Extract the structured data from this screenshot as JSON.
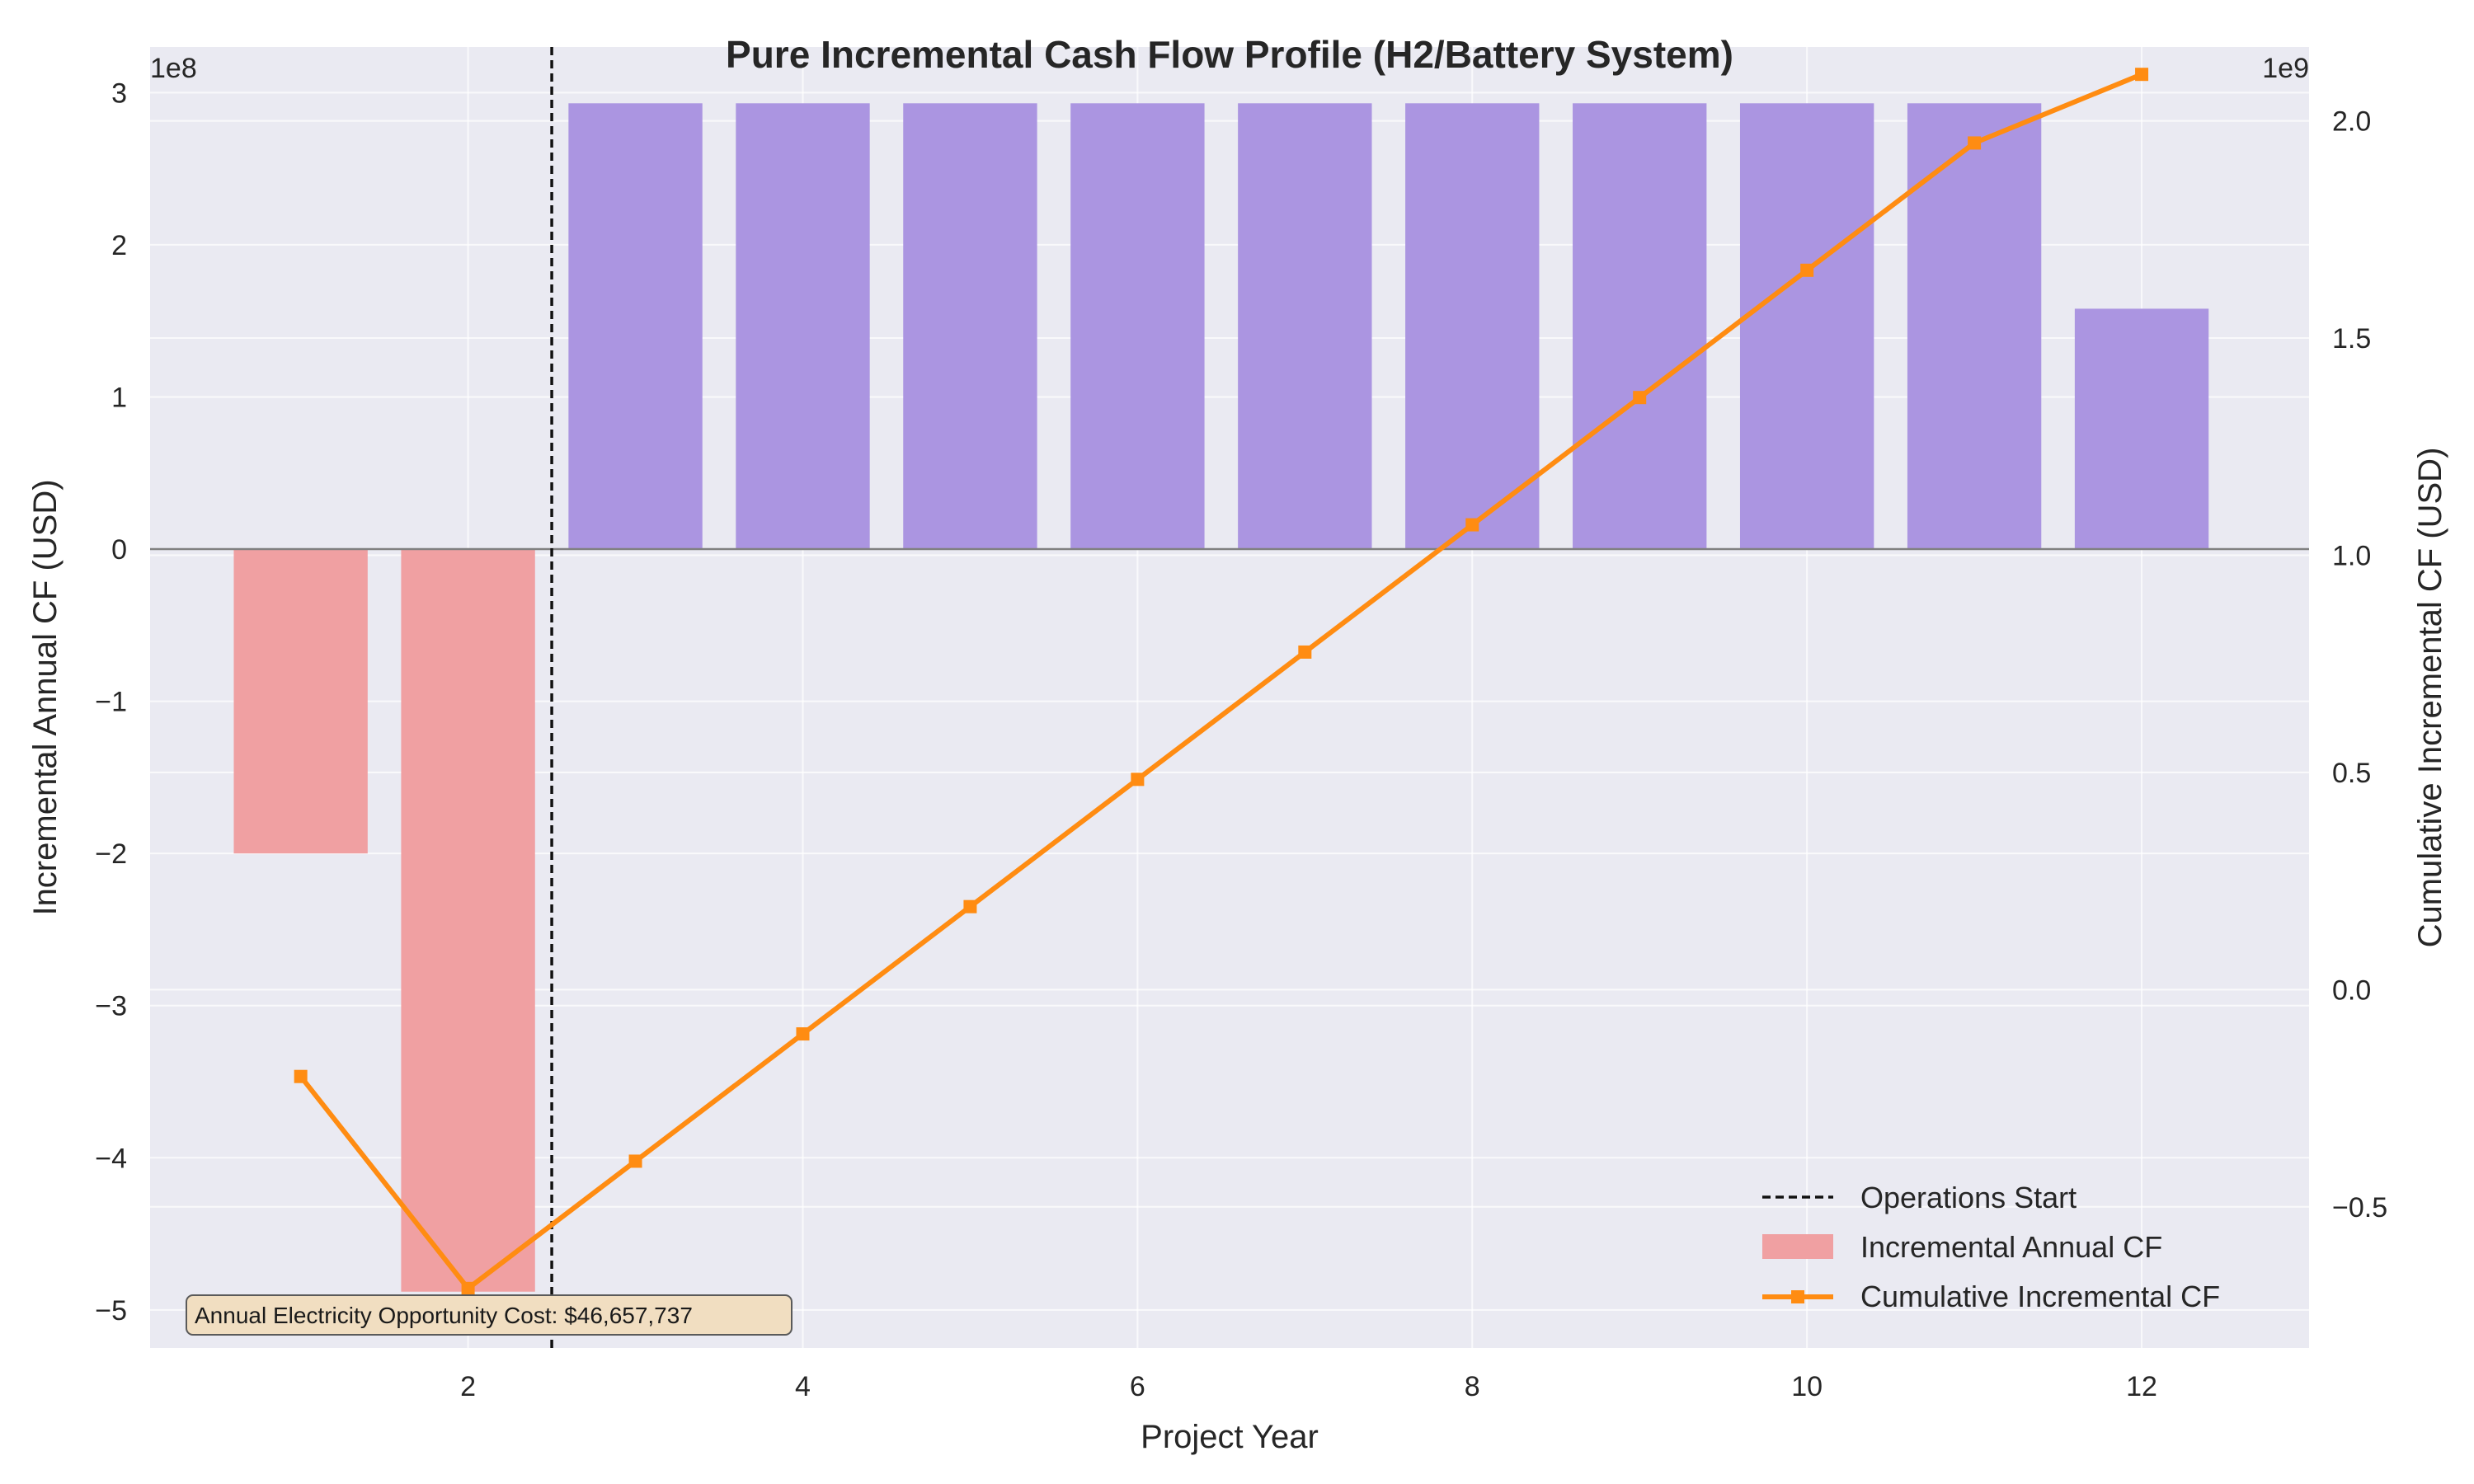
{
  "chart_data": {
    "type": "bar+line",
    "title": "Pure Incremental Cash Flow Profile (H2/Battery System)",
    "xlabel": "Project Year",
    "ylabel_left": "Incremental Annual CF (USD)",
    "ylabel_right": "Cumulative Incremental CF (USD)",
    "left_scale_label": "1e8",
    "right_scale_label": "1e9",
    "x_ticks": [
      2,
      4,
      6,
      8,
      10,
      12
    ],
    "y_left_ticks": [
      3,
      2,
      1,
      0,
      -1,
      -2,
      -3,
      -4,
      -5
    ],
    "y_left_tick_labels": [
      "3",
      "2",
      "1",
      "0",
      "−1",
      "−2",
      "−3",
      "−4",
      "−5"
    ],
    "y_right_ticks": [
      2.0,
      1.5,
      1.0,
      0.5,
      0.0,
      -0.5
    ],
    "y_right_tick_labels": [
      "2.0",
      "1.5",
      "1.0",
      "0.5",
      "0.0",
      "−0.5"
    ],
    "xlim": [
      0.1,
      13.0
    ],
    "ylim_left": [
      -5.25,
      3.3
    ],
    "ylim_right": [
      -0.825,
      2.17
    ],
    "years": [
      1,
      2,
      3,
      4,
      5,
      6,
      7,
      8,
      9,
      10,
      11,
      12
    ],
    "incremental_annual_cf_1e8": [
      -2.0,
      -4.88,
      2.93,
      2.93,
      2.93,
      2.93,
      2.93,
      2.93,
      2.93,
      2.93,
      2.93,
      1.58
    ],
    "cumulative_incremental_cf_1e9": [
      -0.2,
      -0.688,
      -0.395,
      -0.102,
      0.191,
      0.484,
      0.777,
      1.07,
      1.363,
      1.656,
      1.949,
      2.107
    ],
    "operations_start_x": 2.5,
    "colors": {
      "negative_bar": "#f0a0a2",
      "positive_bar": "#ab95e1",
      "line": "#ff8c12",
      "plot_bg": "#eaeaf2",
      "grid": "#ffffff"
    },
    "legend": {
      "placement": "bottom-right",
      "entries": [
        "Operations Start",
        "Incremental Annual CF",
        "Cumulative Incremental CF"
      ]
    },
    "annotation": "Annual Electricity Opportunity Cost: $46,657,737"
  }
}
